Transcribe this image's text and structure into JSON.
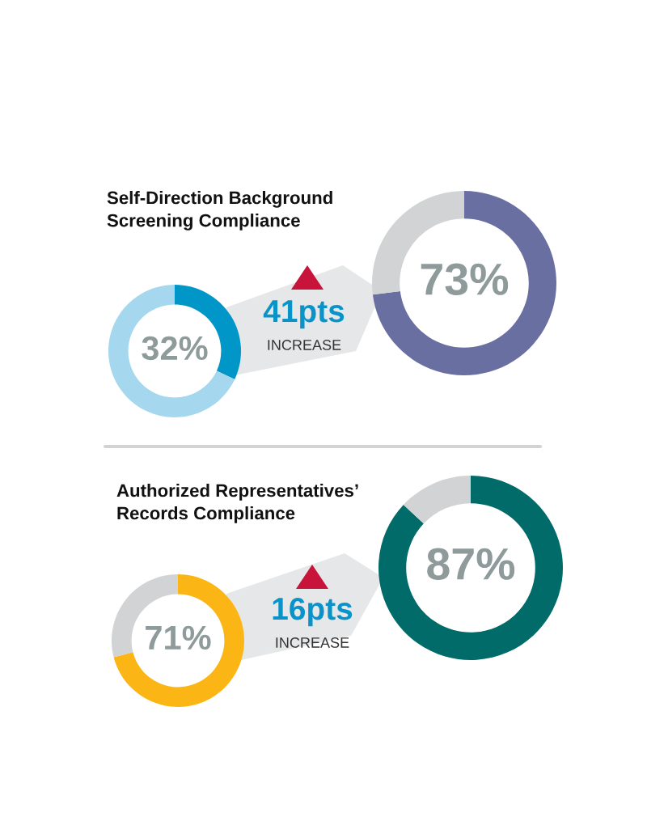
{
  "chart_data": [
    {
      "type": "donut",
      "title": "Self-Direction Background\nScreening Compliance",
      "categories": [
        null,
        null
      ],
      "values": [
        32,
        68
      ],
      "colors": [
        "#0096c8",
        "#a5d8ee"
      ],
      "value_labels": [
        "32%",
        null
      ],
      "annotations": [
        "41pts",
        "INCREASE"
      ]
    },
    {
      "type": "donut",
      "categories": [
        null,
        null
      ],
      "values": [
        73,
        27
      ],
      "colors": [
        "#6a6fa1",
        "#d1d3d4"
      ],
      "value_labels": [
        "73%",
        null
      ]
    },
    {
      "type": "donut",
      "title": "Authorized Representatives’\nRecords Compliance",
      "categories": [
        null,
        null
      ],
      "values": [
        71,
        29
      ],
      "colors": [
        "#fbb616",
        "#d1d3d4"
      ],
      "value_labels": [
        "71%",
        null
      ],
      "annotations": [
        "16pts",
        "INCREASE"
      ]
    },
    {
      "type": "donut",
      "categories": [
        null,
        null
      ],
      "values": [
        87,
        13
      ],
      "colors": [
        "#006b68",
        "#d1d3d4"
      ],
      "value_labels": [
        "87%",
        null
      ]
    }
  ]
}
